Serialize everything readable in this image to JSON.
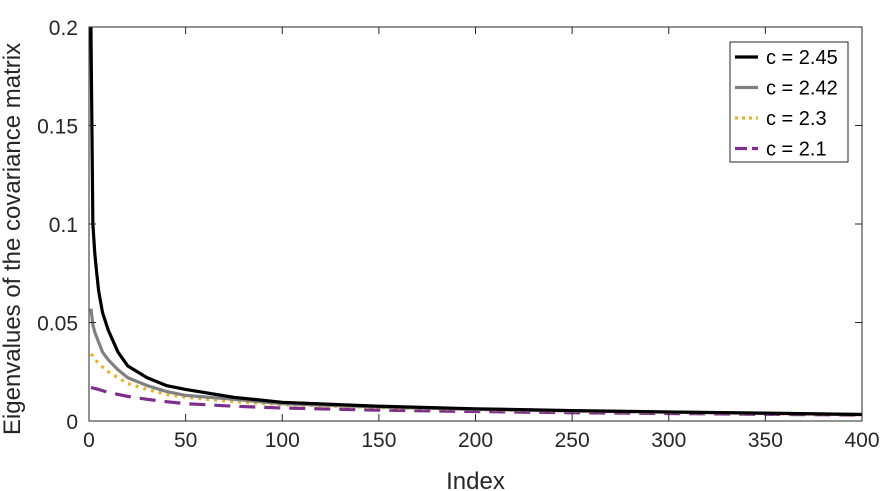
{
  "chart_data": {
    "type": "line",
    "title": "",
    "xlabel": "Index",
    "ylabel": "Eigenvalues of the covariance matrix",
    "xlim": [
      0,
      400
    ],
    "ylim": [
      0,
      0.2
    ],
    "xticks": [
      0,
      50,
      100,
      150,
      200,
      250,
      300,
      350,
      400
    ],
    "yticks": [
      0,
      0.05,
      0.1,
      0.15,
      0.2
    ],
    "xtick_labels": [
      "0",
      "50",
      "100",
      "150",
      "200",
      "250",
      "300",
      "350",
      "400"
    ],
    "ytick_labels": [
      "0",
      "0.05",
      "0.1",
      "0.15",
      "0.2"
    ],
    "grid": false,
    "legend_position": "top-right",
    "series": [
      {
        "name": "c = 2.45",
        "color": "#000000",
        "style": "solid",
        "x": [
          1,
          2,
          3,
          4,
          5,
          7,
          10,
          15,
          20,
          30,
          40,
          50,
          75,
          100,
          150,
          200,
          250,
          300,
          350,
          400
        ],
        "y": [
          0.2,
          0.1,
          0.085,
          0.075,
          0.066,
          0.055,
          0.046,
          0.035,
          0.028,
          0.022,
          0.018,
          0.016,
          0.012,
          0.0095,
          0.0075,
          0.0062,
          0.0053,
          0.0046,
          0.004,
          0.0033
        ]
      },
      {
        "name": "c = 2.42",
        "color": "#808080",
        "style": "solid",
        "x": [
          1,
          2,
          3,
          5,
          7,
          10,
          15,
          20,
          30,
          40,
          50,
          75,
          100,
          150,
          200,
          250,
          300,
          350,
          400
        ],
        "y": [
          0.057,
          0.049,
          0.045,
          0.04,
          0.035,
          0.031,
          0.026,
          0.022,
          0.018,
          0.015,
          0.013,
          0.011,
          0.0088,
          0.0071,
          0.0059,
          0.0051,
          0.0045,
          0.0039,
          0.0033
        ]
      },
      {
        "name": "c = 2.3",
        "color": "#EDB120",
        "style": "dotted",
        "x": [
          1,
          2,
          5,
          10,
          15,
          20,
          30,
          40,
          50,
          75,
          100,
          150,
          200,
          250,
          300,
          350,
          400
        ],
        "y": [
          0.034,
          0.033,
          0.029,
          0.025,
          0.022,
          0.019,
          0.016,
          0.0135,
          0.012,
          0.0098,
          0.0083,
          0.0068,
          0.0058,
          0.005,
          0.0044,
          0.0038,
          0.0032
        ]
      },
      {
        "name": "c = 2.1",
        "color": "#7E2F8E",
        "style": "dashed",
        "x": [
          1,
          5,
          10,
          20,
          30,
          40,
          50,
          75,
          100,
          150,
          200,
          250,
          300,
          350,
          400
        ],
        "y": [
          0.017,
          0.016,
          0.0145,
          0.0125,
          0.011,
          0.0098,
          0.0088,
          0.0075,
          0.0066,
          0.0055,
          0.0048,
          0.0042,
          0.0038,
          0.0034,
          0.003
        ]
      }
    ]
  }
}
